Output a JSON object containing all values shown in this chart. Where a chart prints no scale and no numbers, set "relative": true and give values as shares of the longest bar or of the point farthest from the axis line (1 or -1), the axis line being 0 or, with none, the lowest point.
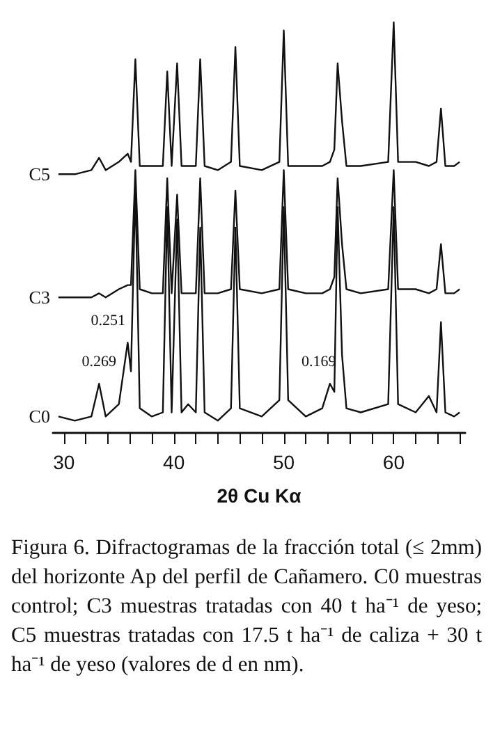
{
  "chart_data": {
    "type": "line",
    "relative": true,
    "xlabel": "2θ Cu Kα",
    "marker": "none",
    "line_style": "solid",
    "grid": false,
    "legend": false,
    "x": [
      29.5,
      31,
      32.5,
      33.2,
      33.8,
      35,
      35.8,
      36.1,
      36.5,
      36.9,
      38,
      39.0,
      39.4,
      39.8,
      40.3,
      40.7,
      41.3,
      42.0,
      42.4,
      42.8,
      44,
      45.2,
      45.6,
      46.0,
      48,
      49.6,
      50.0,
      50.4,
      52,
      53.5,
      54.2,
      54.6,
      54.9,
      55.3,
      55.7,
      57,
      59.5,
      60.0,
      60.4,
      62,
      63.2,
      63.9,
      64.3,
      64.7,
      65.5,
      66
    ],
    "xlim": [
      29,
      66.5
    ],
    "xticks": [
      30,
      {
        "value": 32,
        "label": null
      },
      {
        "value": 34,
        "label": null
      },
      {
        "value": 36,
        "label": null
      },
      {
        "value": 38,
        "label": null
      },
      40,
      {
        "value": 42,
        "label": null
      },
      {
        "value": 44,
        "label": null
      },
      {
        "value": 46,
        "label": null
      },
      {
        "value": 48,
        "label": null
      },
      50,
      {
        "value": 52,
        "label": null
      },
      {
        "value": 54,
        "label": null
      },
      {
        "value": 56,
        "label": null
      },
      {
        "value": 58,
        "label": null
      },
      60,
      {
        "value": 62,
        "label": null
      },
      {
        "value": 64,
        "label": null
      },
      {
        "value": 66,
        "label": null
      }
    ],
    "series": [
      {
        "name": "C0",
        "color": "#111111",
        "values": [
          0.04,
          0.03,
          0.04,
          0.12,
          0.04,
          0.07,
          0.22,
          0.15,
          0.6,
          0.06,
          0.04,
          0.05,
          0.55,
          0.05,
          0.52,
          0.05,
          0.07,
          0.05,
          0.5,
          0.05,
          0.03,
          0.06,
          0.5,
          0.06,
          0.04,
          0.08,
          0.55,
          0.08,
          0.04,
          0.06,
          0.12,
          0.1,
          0.55,
          0.19,
          0.06,
          0.05,
          0.07,
          0.55,
          0.07,
          0.05,
          0.09,
          0.05,
          0.27,
          0.05,
          0.04,
          0.05
        ]
      },
      {
        "name": "C3",
        "color": "#111111",
        "values": [
          0.33,
          0.33,
          0.33,
          0.34,
          0.33,
          0.35,
          0.36,
          0.36,
          0.64,
          0.35,
          0.34,
          0.34,
          0.62,
          0.34,
          0.58,
          0.34,
          0.34,
          0.34,
          0.62,
          0.34,
          0.34,
          0.35,
          0.59,
          0.35,
          0.34,
          0.35,
          0.64,
          0.35,
          0.34,
          0.34,
          0.35,
          0.38,
          0.62,
          0.46,
          0.35,
          0.34,
          0.35,
          0.64,
          0.35,
          0.35,
          0.34,
          0.35,
          0.46,
          0.34,
          0.34,
          0.35
        ]
      },
      {
        "name": "C5",
        "color": "#111111",
        "values": [
          0.63,
          0.63,
          0.64,
          0.67,
          0.64,
          0.66,
          0.68,
          0.66,
          0.91,
          0.65,
          0.65,
          0.65,
          0.88,
          0.65,
          0.9,
          0.65,
          0.65,
          0.65,
          0.91,
          0.65,
          0.64,
          0.66,
          0.94,
          0.65,
          0.64,
          0.66,
          0.98,
          0.65,
          0.65,
          0.65,
          0.66,
          0.69,
          0.9,
          0.76,
          0.65,
          0.65,
          0.66,
          1.0,
          0.66,
          0.66,
          0.65,
          0.66,
          0.79,
          0.65,
          0.65,
          0.66
        ]
      }
    ],
    "annotations": [
      {
        "text": "0.269",
        "x": 33.2,
        "y": 0.12
      },
      {
        "text": "0.251",
        "x": 35.8,
        "y": 0.22
      },
      {
        "text": "0.169",
        "x": 54.2,
        "y": 0.12
      },
      "Figura 6. Difractogramas de la fracción total (≤ 2mm) del horizonte Ap del perfil de Cañamero. C0 muestras control; C3 muestras tratadas con 40 t ha⁻¹ de yeso; C5 muestras tratadas con 17.5 t ha⁻¹ de caliza + 30 t ha⁻¹ de yeso (valores de d en nm)."
    ]
  }
}
